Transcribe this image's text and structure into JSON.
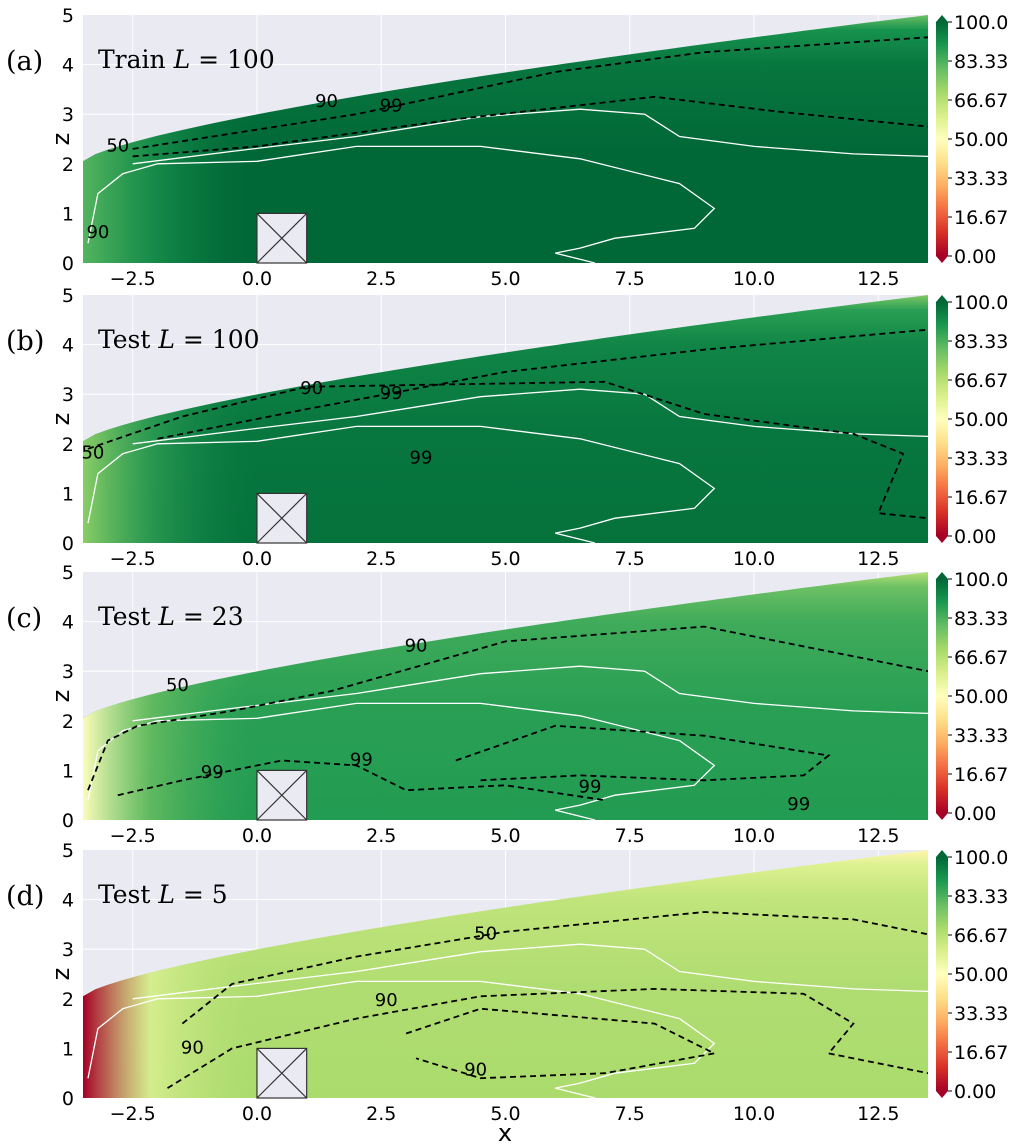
{
  "figure": {
    "xlabel": "x",
    "ylabel": "z",
    "colormap": [
      "#a50026",
      "#d73027",
      "#f46d43",
      "#fdae61",
      "#fee08b",
      "#ffffbf",
      "#d9ef8b",
      "#a6d96a",
      "#66bd63",
      "#1a9850",
      "#006837"
    ],
    "background": "#eaeaf2",
    "x_ticks": [
      "−2.5",
      "0.0",
      "2.5",
      "5.0",
      "7.5",
      "10.0",
      "12.5"
    ],
    "z_ticks": [
      "0",
      "1",
      "2",
      "3",
      "4",
      "5"
    ],
    "colorbar_ticks": [
      "100.0",
      "83.33",
      "66.67",
      "50.00",
      "33.33",
      "16.67",
      "0.00"
    ]
  },
  "chart_data": [
    {
      "type": "heatmap",
      "panel": "(a)",
      "title": "Train L = 100",
      "title_var": "L",
      "title_value": "100",
      "title_prefix": "Train",
      "xlim": [
        -3.5,
        13.5
      ],
      "ylim": [
        0,
        5
      ],
      "clim": [
        0,
        100
      ],
      "fill_level": 97,
      "contour_levels": [
        "50",
        "90",
        "99"
      ],
      "contour_labels": [
        "50",
        "90",
        "99",
        "90"
      ]
    },
    {
      "type": "heatmap",
      "panel": "(b)",
      "title": "Test L = 100",
      "title_var": "L",
      "title_value": "100",
      "title_prefix": "Test",
      "xlim": [
        -3.5,
        13.5
      ],
      "ylim": [
        0,
        5
      ],
      "clim": [
        0,
        100
      ],
      "fill_level": 94,
      "contour_levels": [
        "50",
        "90",
        "99"
      ],
      "contour_labels": [
        "90",
        "99",
        "99",
        "50"
      ]
    },
    {
      "type": "heatmap",
      "panel": "(c)",
      "title": "Test L = 23",
      "title_var": "L",
      "title_value": "23",
      "title_prefix": "Test",
      "xlim": [
        -3.5,
        13.5
      ],
      "ylim": [
        0,
        5
      ],
      "clim": [
        0,
        100
      ],
      "fill_level": 85,
      "contour_levels": [
        "50",
        "90",
        "99"
      ],
      "contour_labels": [
        "50",
        "90",
        "99",
        "99",
        "99",
        "99"
      ]
    },
    {
      "type": "heatmap",
      "panel": "(d)",
      "title": "Test L = 5",
      "title_var": "L",
      "title_value": "5",
      "title_prefix": "Test",
      "xlim": [
        -3.5,
        13.5
      ],
      "ylim": [
        0,
        5
      ],
      "clim": [
        0,
        100
      ],
      "fill_level": 65,
      "contour_levels": [
        "50",
        "90"
      ],
      "contour_labels": [
        "50",
        "90",
        "90",
        "90"
      ]
    }
  ]
}
